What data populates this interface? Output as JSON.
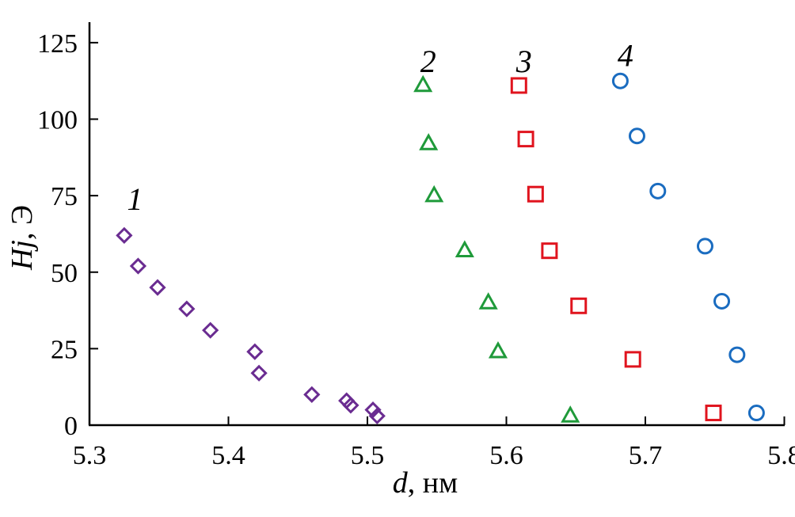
{
  "chart_data": {
    "type": "scatter",
    "title": "",
    "xlabel": {
      "var": "d",
      "unit": ", нм"
    },
    "ylabel": {
      "var": "Hj",
      "unit": ", Э"
    },
    "xlim": [
      5.3,
      5.8
    ],
    "ylim": [
      0,
      130
    ],
    "x_ticks": [
      {
        "value": 5.3,
        "label": "5.3"
      },
      {
        "value": 5.4,
        "label": "5.4"
      },
      {
        "value": 5.5,
        "label": "5.5"
      },
      {
        "value": 5.6,
        "label": "5.6"
      },
      {
        "value": 5.7,
        "label": "5.7"
      },
      {
        "value": 5.8,
        "label": "5.8"
      }
    ],
    "y_ticks": [
      {
        "value": 0,
        "label": "0"
      },
      {
        "value": 25,
        "label": "25"
      },
      {
        "value": 50,
        "label": "50"
      },
      {
        "value": 75,
        "label": "75"
      },
      {
        "value": 100,
        "label": "100"
      },
      {
        "value": 125,
        "label": "125"
      }
    ],
    "grid": false,
    "series": [
      {
        "label": "1",
        "label_at": [
          5.327,
          74
        ],
        "marker": "diamond",
        "color": "#6a2c91",
        "points": [
          [
            5.325,
            62
          ],
          [
            5.335,
            52
          ],
          [
            5.349,
            45
          ],
          [
            5.37,
            38
          ],
          [
            5.387,
            31
          ],
          [
            5.419,
            24
          ],
          [
            5.422,
            17
          ],
          [
            5.46,
            10
          ],
          [
            5.485,
            8
          ],
          [
            5.488,
            6.5
          ],
          [
            5.504,
            5
          ],
          [
            5.507,
            3
          ]
        ]
      },
      {
        "label": "2",
        "label_at": [
          5.538,
          119
        ],
        "marker": "triangle",
        "color": "#1f9a3a",
        "points": [
          [
            5.54,
            111
          ],
          [
            5.544,
            92
          ],
          [
            5.548,
            75
          ],
          [
            5.57,
            57
          ],
          [
            5.587,
            40
          ],
          [
            5.594,
            24
          ],
          [
            5.646,
            3
          ]
        ]
      },
      {
        "label": "3",
        "label_at": [
          5.607,
          119
        ],
        "marker": "square",
        "color": "#e0141e",
        "points": [
          [
            5.609,
            111
          ],
          [
            5.614,
            93.5
          ],
          [
            5.621,
            75.5
          ],
          [
            5.631,
            57
          ],
          [
            5.652,
            39
          ],
          [
            5.691,
            21.5
          ],
          [
            5.749,
            4
          ]
        ]
      },
      {
        "label": "4",
        "label_at": [
          5.68,
          121
        ],
        "marker": "circle",
        "color": "#1a6cc0",
        "points": [
          [
            5.682,
            112.5
          ],
          [
            5.694,
            94.5
          ],
          [
            5.709,
            76.5
          ],
          [
            5.743,
            58.5
          ],
          [
            5.755,
            40.5
          ],
          [
            5.766,
            23
          ],
          [
            5.78,
            4
          ]
        ]
      }
    ]
  }
}
